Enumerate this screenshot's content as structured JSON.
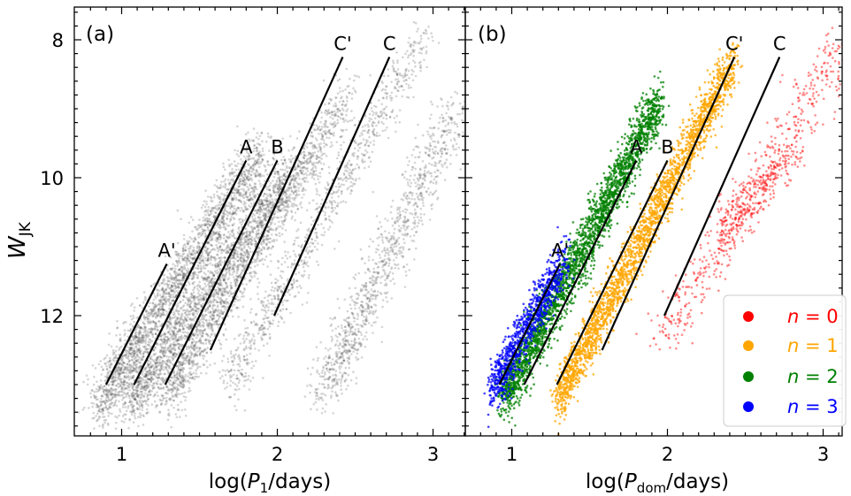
{
  "figure": {
    "ylabel_main": "W",
    "ylabel_sub": "JK",
    "y_tick_labels": [
      "8",
      "10",
      "12"
    ],
    "x_tick_labels": [
      "1",
      "2",
      "3"
    ]
  },
  "chart_data": [
    {
      "type": "scatter",
      "panel_label": "(a)",
      "xlabel_prefix": "log(",
      "xlabel_var": "P",
      "xlabel_sub": "1",
      "xlabel_suffix": "/days)",
      "xlim": [
        0.72,
        3.22
      ],
      "ylim": [
        13.7,
        7.55
      ],
      "y_inverted": true,
      "grid": false,
      "series": [
        {
          "color": "#404040",
          "clouds": [
            {
              "ridge": [
                [
                  0.85,
                  13.3
                ],
                [
                  1.9,
                  9.6
                ]
              ],
              "x_spread": 0.1,
              "points": 2100
            },
            {
              "ridge": [
                [
                  1.05,
                  13.3
                ],
                [
                  2.1,
                  9.8
                ]
              ],
              "x_spread": 0.1,
              "points": 1900
            },
            {
              "ridge": [
                [
                  1.3,
                  13.2
                ],
                [
                  2.45,
                  8.8
                ]
              ],
              "x_spread": 0.09,
              "points": 1500
            },
            {
              "ridge": [
                [
                  1.7,
                  13.0
                ],
                [
                  2.95,
                  7.9
                ]
              ],
              "x_spread": 0.09,
              "points": 900
            },
            {
              "ridge": [
                [
                  2.3,
                  13.1
                ],
                [
                  3.15,
                  9.0
                ]
              ],
              "x_spread": 0.12,
              "points": 1100
            }
          ]
        }
      ],
      "ridge_lines": [
        {
          "label": "A'",
          "x": [
            0.9,
            1.29
          ],
          "y": [
            13.0,
            11.25
          ]
        },
        {
          "label": "A",
          "x": [
            1.08,
            1.8
          ],
          "y": [
            13.0,
            9.75
          ]
        },
        {
          "label": "B",
          "x": [
            1.28,
            2.0
          ],
          "y": [
            13.0,
            9.75
          ]
        },
        {
          "label": "C'",
          "x": [
            1.57,
            2.42
          ],
          "y": [
            12.5,
            8.25
          ]
        },
        {
          "label": "C",
          "x": [
            1.98,
            2.72
          ],
          "y": [
            12.0,
            8.25
          ]
        }
      ]
    },
    {
      "type": "scatter",
      "panel_label": "(b)",
      "xlabel_prefix": "log(",
      "xlabel_var": "P",
      "xlabel_sub": "dom",
      "xlabel_suffix": "/days)",
      "xlim": [
        0.72,
        3.22
      ],
      "ylim": [
        13.7,
        7.55
      ],
      "y_inverted": true,
      "grid": false,
      "series": [
        {
          "name": "n = 0",
          "color": "#ff0000",
          "clouds": [
            {
              "ridge": [
                [
                  1.97,
                  12.3
                ],
                [
                  3.15,
                  8.0
                ]
              ],
              "x_spread": 0.12,
              "points": 500
            },
            {
              "ridge": [
                [
                  2.35,
                  10.8
                ],
                [
                  2.85,
                  9.5
                ]
              ],
              "x_spread": 0.07,
              "points": 300
            }
          ]
        },
        {
          "name": "n = 1",
          "color": "#ffa500",
          "clouds": [
            {
              "ridge": [
                [
                  1.3,
                  13.2
                ],
                [
                  2.43,
                  8.3
                ]
              ],
              "x_spread": 0.05,
              "points": 2400
            }
          ]
        },
        {
          "name": "n = 2",
          "color": "#008000",
          "clouds": [
            {
              "ridge": [
                [
                  0.95,
                  13.2
                ],
                [
                  1.95,
                  8.9
                ]
              ],
              "x_spread": 0.06,
              "points": 2600
            }
          ]
        },
        {
          "name": "n = 3",
          "color": "#0000ff",
          "clouds": [
            {
              "ridge": [
                [
                  0.87,
                  13.1
                ],
                [
                  1.35,
                  11.15
                ]
              ],
              "x_spread": 0.04,
              "points": 900
            }
          ]
        }
      ],
      "ridge_lines": [
        {
          "label": "A'",
          "x": [
            0.92,
            1.31
          ],
          "y": [
            13.0,
            11.25
          ]
        },
        {
          "label": "A",
          "x": [
            1.08,
            1.8
          ],
          "y": [
            13.0,
            9.75
          ]
        },
        {
          "label": "B",
          "x": [
            1.29,
            2.0
          ],
          "y": [
            13.0,
            9.75
          ]
        },
        {
          "label": "C'",
          "x": [
            1.58,
            2.43
          ],
          "y": [
            12.5,
            8.25
          ]
        },
        {
          "label": "C",
          "x": [
            1.98,
            2.72
          ],
          "y": [
            12.0,
            8.25
          ]
        }
      ],
      "legend": {
        "placement": "lower-right",
        "entries": [
          {
            "label": "n = 0",
            "var": "n",
            "eq": " = 0",
            "color": "#ff0000"
          },
          {
            "label": "n = 1",
            "var": "n",
            "eq": " = 1",
            "color": "#ffa500"
          },
          {
            "label": "n = 2",
            "var": "n",
            "eq": " = 2",
            "color": "#008000"
          },
          {
            "label": "n = 3",
            "var": "n",
            "eq": " = 3",
            "color": "#0000ff"
          }
        ]
      }
    }
  ]
}
